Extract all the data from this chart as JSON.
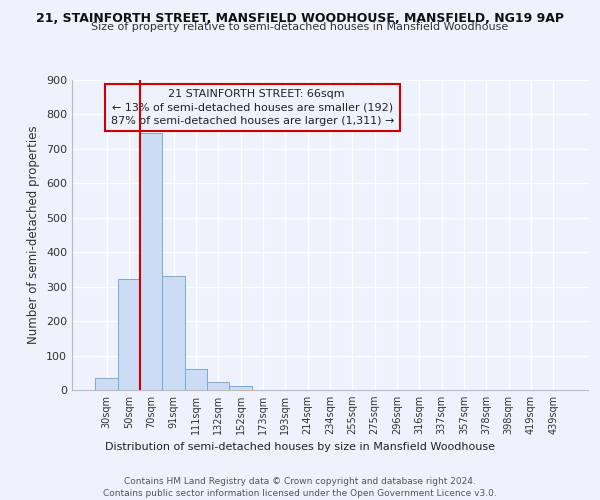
{
  "title1": "21, STAINFORTH STREET, MANSFIELD WOODHOUSE, MANSFIELD, NG19 9AP",
  "title2": "Size of property relative to semi-detached houses in Mansfield Woodhouse",
  "xlabel": "Distribution of semi-detached houses by size in Mansfield Woodhouse",
  "ylabel": "Number of semi-detached properties",
  "footnote1": "Contains HM Land Registry data © Crown copyright and database right 2024.",
  "footnote2": "Contains public sector information licensed under the Open Government Licence v3.0.",
  "bar_labels": [
    "30sqm",
    "50sqm",
    "70sqm",
    "91sqm",
    "111sqm",
    "132sqm",
    "152sqm",
    "173sqm",
    "193sqm",
    "214sqm",
    "234sqm",
    "255sqm",
    "275sqm",
    "296sqm",
    "316sqm",
    "337sqm",
    "357sqm",
    "378sqm",
    "398sqm",
    "419sqm",
    "439sqm"
  ],
  "bar_values": [
    35,
    322,
    746,
    332,
    60,
    22,
    11,
    0,
    0,
    0,
    0,
    0,
    0,
    0,
    0,
    0,
    0,
    0,
    0,
    0,
    0
  ],
  "bar_color": "#ccdcf5",
  "bar_edge_color": "#7aaad0",
  "highlight_label": "21 STAINFORTH STREET: 66sqm",
  "pct_smaller": 13,
  "n_smaller": 192,
  "pct_larger": 87,
  "n_larger": 1311,
  "vline_color": "#cc0000",
  "annotation_box_edge": "#cc0000",
  "ylim": [
    0,
    900
  ],
  "yticks": [
    0,
    100,
    200,
    300,
    400,
    500,
    600,
    700,
    800,
    900
  ],
  "bg_color": "#eef2fc",
  "grid_color": "#ffffff",
  "bar_width": 1.0
}
